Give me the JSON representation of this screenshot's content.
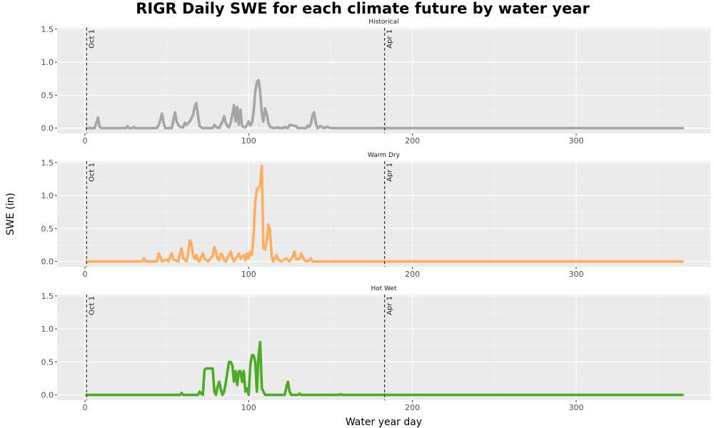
{
  "chart_data": {
    "type": "line",
    "title": "RIGR Daily SWE for each climate future by water year",
    "xlabel": "Water year day",
    "ylabel": "SWE (in)",
    "xlim": [
      -17,
      382
    ],
    "ylim": [
      -0.08,
      1.52
    ],
    "x_ticks": [
      0,
      100,
      200,
      300
    ],
    "y_ticks": [
      0.0,
      0.5,
      1.0,
      1.5
    ],
    "y_tick_labels": [
      "0.0",
      "0.5",
      "1.0",
      "1.5"
    ],
    "grid": true,
    "reference_lines": [
      {
        "x": 1,
        "label": "Oct 1"
      },
      {
        "x": 183,
        "label": "Apr 1"
      }
    ],
    "panels": [
      {
        "name": "Historical",
        "color": "#a6a6a6",
        "points": [
          [
            1,
            0
          ],
          [
            6,
            0
          ],
          [
            7,
            0.08
          ],
          [
            8,
            0.16
          ],
          [
            9,
            0.02
          ],
          [
            10,
            0
          ],
          [
            25,
            0
          ],
          [
            26,
            0.03
          ],
          [
            27,
            0
          ],
          [
            29,
            0
          ],
          [
            30,
            0.02
          ],
          [
            31,
            0
          ],
          [
            44,
            0
          ],
          [
            45,
            0.05
          ],
          [
            46,
            0.12
          ],
          [
            47,
            0.22
          ],
          [
            48,
            0.08
          ],
          [
            49,
            0
          ],
          [
            53,
            0
          ],
          [
            54,
            0.12
          ],
          [
            55,
            0.24
          ],
          [
            56,
            0.1
          ],
          [
            57,
            0.05
          ],
          [
            58,
            0.02
          ],
          [
            60,
            0.01
          ],
          [
            61,
            0.08
          ],
          [
            62,
            0.05
          ],
          [
            64,
            0.1
          ],
          [
            66,
            0.2
          ],
          [
            67,
            0.32
          ],
          [
            68,
            0.38
          ],
          [
            69,
            0.2
          ],
          [
            70,
            0.03
          ],
          [
            72,
            0
          ],
          [
            78,
            0
          ],
          [
            79,
            0.05
          ],
          [
            80,
            0.02
          ],
          [
            82,
            0
          ],
          [
            84,
            0.1
          ],
          [
            85,
            0.18
          ],
          [
            86,
            0.08
          ],
          [
            87,
            0.03
          ],
          [
            88,
            0.01
          ],
          [
            89,
            0.08
          ],
          [
            90,
            0.2
          ],
          [
            91,
            0.35
          ],
          [
            92,
            0.1
          ],
          [
            93,
            0.32
          ],
          [
            94,
            0.05
          ],
          [
            95,
            0.28
          ],
          [
            96,
            0.03
          ],
          [
            98,
            0.01
          ],
          [
            99,
            0.05
          ],
          [
            100,
            0.1
          ],
          [
            101,
            0.04
          ],
          [
            102,
            0.08
          ],
          [
            103,
            0.25
          ],
          [
            104,
            0.55
          ],
          [
            105,
            0.7
          ],
          [
            106,
            0.73
          ],
          [
            107,
            0.55
          ],
          [
            108,
            0.22
          ],
          [
            109,
            0.1
          ],
          [
            110,
            0.3
          ],
          [
            111,
            0.22
          ],
          [
            112,
            0.08
          ],
          [
            113,
            0.02
          ],
          [
            115,
            0
          ],
          [
            118,
            0.01
          ],
          [
            119,
            0
          ],
          [
            121,
            0
          ],
          [
            122,
            0.02
          ],
          [
            124,
            0
          ],
          [
            125,
            0.05
          ],
          [
            127,
            0.04
          ],
          [
            129,
            0.03
          ],
          [
            130,
            0
          ],
          [
            135,
            0
          ],
          [
            136,
            0.04
          ],
          [
            137,
            0.02
          ],
          [
            138,
            0.06
          ],
          [
            139,
            0.2
          ],
          [
            140,
            0.24
          ],
          [
            141,
            0.08
          ],
          [
            142,
            0
          ],
          [
            144,
            0.03
          ],
          [
            146,
            0
          ],
          [
            148,
            0.02
          ],
          [
            150,
            0
          ],
          [
            365,
            0
          ]
        ]
      },
      {
        "name": "Warm Dry",
        "color": "#fdae61",
        "points": [
          [
            1,
            0
          ],
          [
            35,
            0
          ],
          [
            36,
            0.05
          ],
          [
            37,
            0
          ],
          [
            44,
            0
          ],
          [
            45,
            0.12
          ],
          [
            46,
            0.08
          ],
          [
            47,
            0
          ],
          [
            50,
            0.03
          ],
          [
            51,
            0
          ],
          [
            52,
            0.08
          ],
          [
            53,
            0.12
          ],
          [
            54,
            0.03
          ],
          [
            57,
            0
          ],
          [
            58,
            0.12
          ],
          [
            59,
            0.2
          ],
          [
            60,
            0.05
          ],
          [
            62,
            0
          ],
          [
            63,
            0.12
          ],
          [
            64,
            0.32
          ],
          [
            65,
            0.28
          ],
          [
            66,
            0.1
          ],
          [
            67,
            0.04
          ],
          [
            68,
            0.1
          ],
          [
            69,
            0.02
          ],
          [
            70,
            0
          ],
          [
            72,
            0.12
          ],
          [
            73,
            0.05
          ],
          [
            75,
            0
          ],
          [
            78,
            0.08
          ],
          [
            79,
            0.22
          ],
          [
            80,
            0.15
          ],
          [
            81,
            0.04
          ],
          [
            82,
            0.02
          ],
          [
            83,
            0.12
          ],
          [
            84,
            0.1
          ],
          [
            85,
            0.02
          ],
          [
            86,
            0
          ],
          [
            88,
            0.1
          ],
          [
            89,
            0.15
          ],
          [
            90,
            0.05
          ],
          [
            91,
            0
          ],
          [
            94,
            0.12
          ],
          [
            95,
            0.04
          ],
          [
            97,
            0.1
          ],
          [
            98,
            0.02
          ],
          [
            99,
            0.12
          ],
          [
            100,
            0.05
          ],
          [
            101,
            0.15
          ],
          [
            102,
            0.1
          ],
          [
            103,
            0.4
          ],
          [
            104,
            0.9
          ],
          [
            105,
            1.1
          ],
          [
            106,
            1.12
          ],
          [
            107,
            1.15
          ],
          [
            108,
            1.45
          ],
          [
            109,
            0.2
          ],
          [
            110,
            0.18
          ],
          [
            111,
            0.3
          ],
          [
            112,
            0.56
          ],
          [
            113,
            0.48
          ],
          [
            114,
            0.1
          ],
          [
            115,
            0
          ],
          [
            117,
            0.1
          ],
          [
            118,
            0.03
          ],
          [
            120,
            0
          ],
          [
            123,
            0.05
          ],
          [
            124,
            0.02
          ],
          [
            125,
            0
          ],
          [
            127,
            0.08
          ],
          [
            128,
            0.15
          ],
          [
            129,
            0.03
          ],
          [
            131,
            0.04
          ],
          [
            132,
            0.12
          ],
          [
            133,
            0.08
          ],
          [
            134,
            0.02
          ],
          [
            136,
            0
          ],
          [
            138,
            0.05
          ],
          [
            139,
            0
          ],
          [
            365,
            0
          ]
        ]
      },
      {
        "name": "Hot Wet",
        "color": "#4dac26",
        "points": [
          [
            1,
            0
          ],
          [
            58,
            0
          ],
          [
            59,
            0.03
          ],
          [
            60,
            0
          ],
          [
            69,
            0
          ],
          [
            70,
            0.05
          ],
          [
            71,
            0.02
          ],
          [
            72,
            0
          ],
          [
            73,
            0.38
          ],
          [
            74,
            0.4
          ],
          [
            78,
            0.4
          ],
          [
            79,
            0.05
          ],
          [
            80,
            0
          ],
          [
            81,
            0.12
          ],
          [
            82,
            0.2
          ],
          [
            83,
            0.08
          ],
          [
            84,
            0
          ],
          [
            85,
            0.05
          ],
          [
            86,
            0.18
          ],
          [
            87,
            0.35
          ],
          [
            88,
            0.5
          ],
          [
            89,
            0.5
          ],
          [
            90,
            0.45
          ],
          [
            91,
            0.2
          ],
          [
            92,
            0.36
          ],
          [
            93,
            0.15
          ],
          [
            94,
            0.36
          ],
          [
            95,
            0.36
          ],
          [
            96,
            0.2
          ],
          [
            97,
            0.36
          ],
          [
            98,
            0.05
          ],
          [
            99,
            0.1
          ],
          [
            100,
            0
          ],
          [
            101,
            0.45
          ],
          [
            102,
            0.6
          ],
          [
            103,
            0.6
          ],
          [
            104,
            0.5
          ],
          [
            105,
            0.05
          ],
          [
            106,
            0.6
          ],
          [
            107,
            0.8
          ],
          [
            108,
            0.1
          ],
          [
            110,
            0
          ],
          [
            122,
            0
          ],
          [
            123,
            0.12
          ],
          [
            124,
            0.2
          ],
          [
            125,
            0.05
          ],
          [
            126,
            0
          ],
          [
            130,
            0
          ],
          [
            131,
            0.02
          ],
          [
            132,
            0
          ],
          [
            155,
            0
          ],
          [
            156,
            0.01
          ],
          [
            157,
            0
          ],
          [
            365,
            0
          ]
        ]
      }
    ]
  }
}
